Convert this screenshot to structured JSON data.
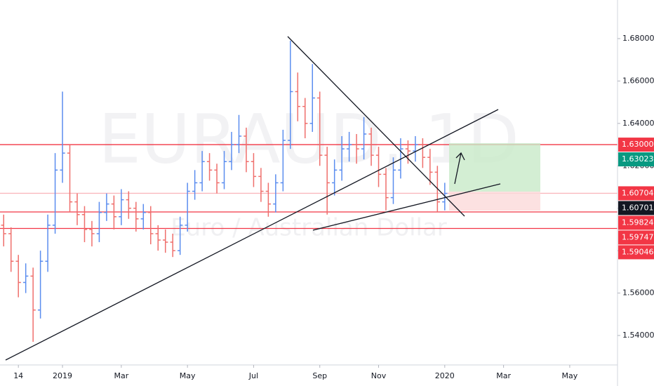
{
  "chart_data": {
    "type": "ohlc",
    "watermark": {
      "symbol": "EURAUD, 1D",
      "description": "Euro / Australian Dollar"
    },
    "up_color": "#5b8def",
    "down_color": "#ef6f6c",
    "categories": [
      null,
      null,
      "14",
      null,
      null,
      null,
      null,
      null,
      "2019",
      null,
      null,
      null,
      null,
      null,
      null,
      null,
      "Mar",
      null,
      null,
      null,
      null,
      null,
      null,
      null,
      null,
      "May",
      null,
      null,
      null,
      null,
      null,
      null,
      null,
      null,
      "Jul",
      null,
      null,
      null,
      null,
      null,
      null,
      null,
      null,
      "Sep",
      null,
      null,
      null,
      null,
      null,
      null,
      null,
      "Nov",
      null,
      null,
      null,
      null,
      null,
      null,
      null,
      null,
      "2020",
      null,
      null,
      null,
      null,
      null,
      null,
      null,
      "Mar",
      null,
      null,
      null,
      null,
      null,
      null,
      null,
      null,
      "May",
      null,
      null,
      null,
      null,
      null,
      null
    ],
    "open": [
      1.592,
      1.588,
      1.575,
      1.565,
      1.568,
      1.552,
      1.575,
      1.592,
      1.618,
      1.626,
      1.603,
      1.597,
      1.59,
      1.588,
      1.598,
      1.602,
      1.596,
      1.604,
      1.6,
      1.595,
      1.598,
      1.588,
      1.585,
      1.584,
      1.58,
      1.592,
      1.608,
      1.612,
      1.622,
      1.618,
      1.612,
      1.622,
      1.63,
      1.634,
      1.622,
      1.615,
      1.608,
      1.602,
      1.612,
      1.632,
      1.655,
      1.648,
      1.64,
      1.652,
      1.625,
      1.612,
      1.618,
      1.628,
      1.63,
      1.628,
      1.635,
      1.625,
      1.616,
      1.605,
      1.618,
      1.628,
      1.627,
      1.63,
      1.624,
      1.617,
      1.603,
      null,
      null,
      null,
      null,
      null,
      null,
      null,
      null,
      null,
      null,
      null,
      null,
      null,
      null,
      null,
      null,
      null,
      null,
      null,
      null,
      null,
      null,
      null
    ],
    "high": [
      1.597,
      1.591,
      1.578,
      1.574,
      1.572,
      1.58,
      1.597,
      1.626,
      1.655,
      1.63,
      1.607,
      1.601,
      1.594,
      1.603,
      1.607,
      1.606,
      1.609,
      1.608,
      1.603,
      1.602,
      1.601,
      1.592,
      1.59,
      1.588,
      1.596,
      1.612,
      1.618,
      1.627,
      1.626,
      1.621,
      1.627,
      1.636,
      1.644,
      1.638,
      1.626,
      1.619,
      1.612,
      1.616,
      1.637,
      1.679,
      1.664,
      1.652,
      1.668,
      1.655,
      1.629,
      1.623,
      1.634,
      1.636,
      1.635,
      1.643,
      1.638,
      1.629,
      1.619,
      1.624,
      1.633,
      1.632,
      1.634,
      1.633,
      1.628,
      1.62,
      1.612,
      null,
      null,
      null,
      null,
      null,
      null,
      null,
      null,
      null,
      null,
      null,
      null,
      null,
      null,
      null,
      null,
      null,
      null,
      null,
      null,
      null,
      null,
      null
    ],
    "low": [
      1.582,
      1.57,
      1.558,
      1.56,
      1.537,
      1.548,
      1.57,
      1.588,
      1.612,
      1.598,
      1.592,
      1.584,
      1.582,
      1.584,
      1.594,
      1.59,
      1.592,
      1.595,
      1.589,
      1.59,
      1.583,
      1.58,
      1.579,
      1.577,
      1.578,
      1.589,
      1.604,
      1.608,
      1.613,
      1.607,
      1.609,
      1.618,
      1.626,
      1.617,
      1.61,
      1.603,
      1.596,
      1.598,
      1.608,
      1.628,
      1.641,
      1.633,
      1.636,
      1.62,
      1.597,
      1.606,
      1.613,
      1.622,
      1.621,
      1.623,
      1.62,
      1.61,
      1.599,
      1.602,
      1.614,
      1.621,
      1.622,
      1.619,
      1.611,
      1.598,
      1.599,
      null,
      null,
      null,
      null,
      null,
      null,
      null,
      null,
      null,
      null,
      null,
      null,
      null,
      null,
      null,
      null,
      null,
      null,
      null,
      null,
      null,
      null,
      null
    ],
    "close": [
      1.588,
      1.575,
      1.565,
      1.568,
      1.552,
      1.575,
      1.592,
      1.618,
      1.626,
      1.603,
      1.597,
      1.59,
      1.588,
      1.598,
      1.602,
      1.596,
      1.604,
      1.6,
      1.595,
      1.598,
      1.588,
      1.585,
      1.584,
      1.58,
      1.592,
      1.608,
      1.612,
      1.622,
      1.618,
      1.612,
      1.622,
      1.63,
      1.634,
      1.622,
      1.615,
      1.608,
      1.602,
      1.612,
      1.632,
      1.655,
      1.648,
      1.64,
      1.652,
      1.625,
      1.612,
      1.618,
      1.628,
      1.63,
      1.628,
      1.635,
      1.625,
      1.616,
      1.605,
      1.618,
      1.628,
      1.627,
      1.63,
      1.624,
      1.617,
      1.603,
      1.607,
      null,
      null,
      null,
      null,
      null,
      null,
      null,
      null,
      null,
      null,
      null,
      null,
      null,
      null,
      null,
      null,
      null,
      null,
      null,
      null,
      null,
      null,
      null
    ],
    "ylim": [
      1.5261,
      1.6982
    ],
    "yticks": [
      {
        "value": 1.54,
        "label": "1.54000"
      },
      {
        "value": 1.56,
        "label": "1.56000"
      },
      {
        "value": 1.58,
        "label": "1.58000"
      },
      {
        "value": 1.6,
        "label": "1.60000"
      },
      {
        "value": 1.62,
        "label": "1.62000"
      },
      {
        "value": 1.64,
        "label": "1.64000"
      },
      {
        "value": 1.66,
        "label": "1.66000"
      },
      {
        "value": 1.68,
        "label": "1.68000"
      }
    ],
    "grid": false,
    "price_labels": [
      {
        "value": 1.63,
        "label": "1.63000",
        "color": "#f23645",
        "line": true
      },
      {
        "value": 1.63023,
        "label": "1.63023",
        "color": "#089981",
        "line": false
      },
      {
        "value": 1.60704,
        "label": "1.60704",
        "color": "#f23645",
        "line": true
      },
      {
        "value": 1.60701,
        "label": "1.60701",
        "color": "#131722",
        "line": false
      },
      {
        "value": 1.59824,
        "label": "1.59824",
        "color": "#f23645",
        "line": true
      },
      {
        "value": 1.59747,
        "label": "1.59747",
        "color": "#f23645",
        "line": false
      },
      {
        "value": 1.59046,
        "label": "1.59046",
        "color": "#f23645",
        "line": true
      }
    ]
  }
}
